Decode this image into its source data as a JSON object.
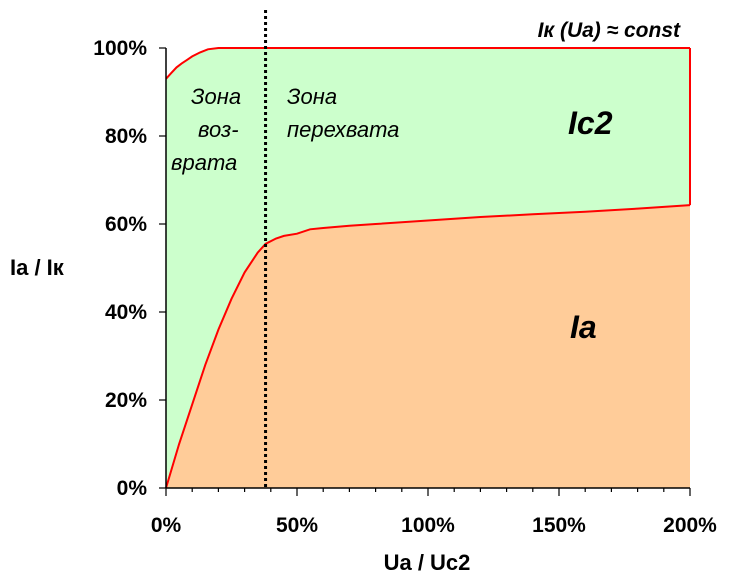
{
  "chart_data": {
    "type": "area",
    "xlabel": "Ua / Uc2",
    "ylabel": "Ia / Iк",
    "xlim": [
      0,
      200
    ],
    "ylim": [
      0,
      100
    ],
    "x_ticks": [
      0,
      50,
      100,
      150,
      200
    ],
    "x_tick_labels": [
      "0%",
      "50%",
      "100%",
      "150%",
      "200%"
    ],
    "y_ticks": [
      0,
      20,
      40,
      60,
      80,
      100
    ],
    "y_tick_labels": [
      "0%",
      "20%",
      "40%",
      "60%",
      "80%",
      "100%"
    ],
    "grid": false,
    "series": [
      {
        "name": "Ia",
        "color": "#FFCC99",
        "line_color": "#FF0000",
        "x": [
          0,
          5,
          10,
          15,
          20,
          25,
          30,
          35,
          38,
          42,
          45,
          50,
          55,
          60,
          70,
          80,
          100,
          120,
          140,
          160,
          180,
          200
        ],
        "y": [
          0,
          10,
          19,
          28,
          36,
          43,
          49,
          53.5,
          55.5,
          56.7,
          57.3,
          57.8,
          58.8,
          59.1,
          59.6,
          60.0,
          60.8,
          61.6,
          62.2,
          62.8,
          63.5,
          64.3
        ]
      },
      {
        "name": "Ic2",
        "color": "#CCFFCC",
        "line_color": "#FF0000",
        "x": [
          0,
          2,
          4,
          6,
          8,
          10,
          13,
          16,
          20,
          25,
          200
        ],
        "y": [
          93,
          94.3,
          95.6,
          96.5,
          97.3,
          98.1,
          99.0,
          99.7,
          100,
          100,
          100
        ]
      }
    ],
    "divider": {
      "x": 38,
      "style": "dotted",
      "color": "#000000"
    },
    "annotations": {
      "top_right": "Iк (Ua) ≈ const",
      "zone_return": [
        "Зона",
        "воз-",
        "врата"
      ],
      "zone_intercept": [
        "Зона",
        "перехвата"
      ],
      "region_ic2": "Ic2",
      "region_ia": "Ia"
    }
  }
}
